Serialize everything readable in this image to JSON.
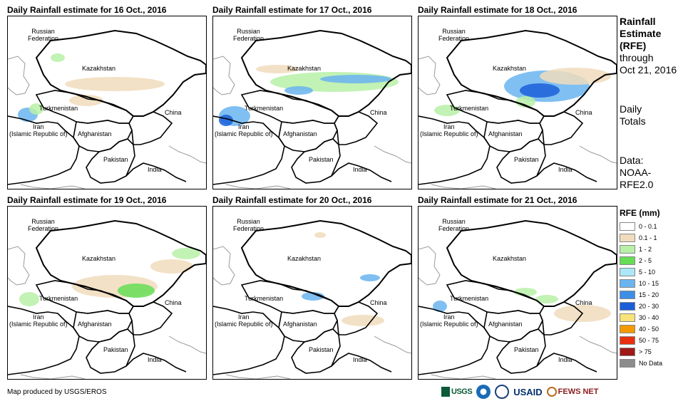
{
  "panels": [
    {
      "title": "Daily Rainfall estimate for 16 Oct., 2016",
      "day": 16
    },
    {
      "title": "Daily Rainfall estimate for 17 Oct., 2016",
      "day": 17
    },
    {
      "title": "Daily Rainfall estimate for 18 Oct., 2016",
      "day": 18
    },
    {
      "title": "Daily Rainfall estimate for 19 Oct., 2016",
      "day": 19
    },
    {
      "title": "Daily Rainfall estimate for 20 Oct., 2016",
      "day": 20
    },
    {
      "title": "Daily Rainfall estimate for 21 Oct., 2016",
      "day": 21
    }
  ],
  "map_labels": {
    "russia": "Russian\nFederation",
    "kazakhstan": "Kazakhstan",
    "turkmenistan": "Turkmenistan",
    "iran": "Iran\n(Islamic Republic of)",
    "afghanistan": "Afghanistan",
    "pakistan": "Pakistan",
    "china": "China",
    "india": "India"
  },
  "side": {
    "title_line1": "Rainfall",
    "title_line2": "Estimate",
    "title_line3": "(RFE)",
    "through": "through",
    "through_date": "Oct 21, 2016",
    "daily": "Daily",
    "totals": "Totals",
    "data": "Data:",
    "source1": "NOAA-",
    "source2": "RFE2.0"
  },
  "legend": {
    "title": "RFE (mm)",
    "items": [
      {
        "label": "0 - 0.1",
        "color": "#ffffff"
      },
      {
        "label": "0.1 - 1",
        "color": "#f0dcbc"
      },
      {
        "label": "1 - 2",
        "color": "#b9f0a8"
      },
      {
        "label": "2 - 5",
        "color": "#66dd55"
      },
      {
        "label": "5 - 10",
        "color": "#aae8f8"
      },
      {
        "label": "10 - 15",
        "color": "#6ab4f0"
      },
      {
        "label": "15 - 20",
        "color": "#3d8ee6"
      },
      {
        "label": "20 - 30",
        "color": "#1a5fd8"
      },
      {
        "label": "30 - 40",
        "color": "#f8e27a"
      },
      {
        "label": "40 - 50",
        "color": "#f39a00"
      },
      {
        "label": "50 - 75",
        "color": "#e83010"
      },
      {
        "label": "> 75",
        "color": "#a01818"
      },
      {
        "label": "No Data",
        "color": "#8c8c8c"
      }
    ]
  },
  "credit": "Map produced by USGS/EROS",
  "logos": {
    "usgs": "USGS",
    "usaid": "USAID",
    "fews": "FEWS NET"
  },
  "colors": {
    "border": "#000000",
    "coast": "#999999",
    "dry": "#f0dcbc",
    "light": "#b9f0a8",
    "green": "#66dd55",
    "blue": "#6ab4f0",
    "dark_blue": "#1a5fd8"
  }
}
